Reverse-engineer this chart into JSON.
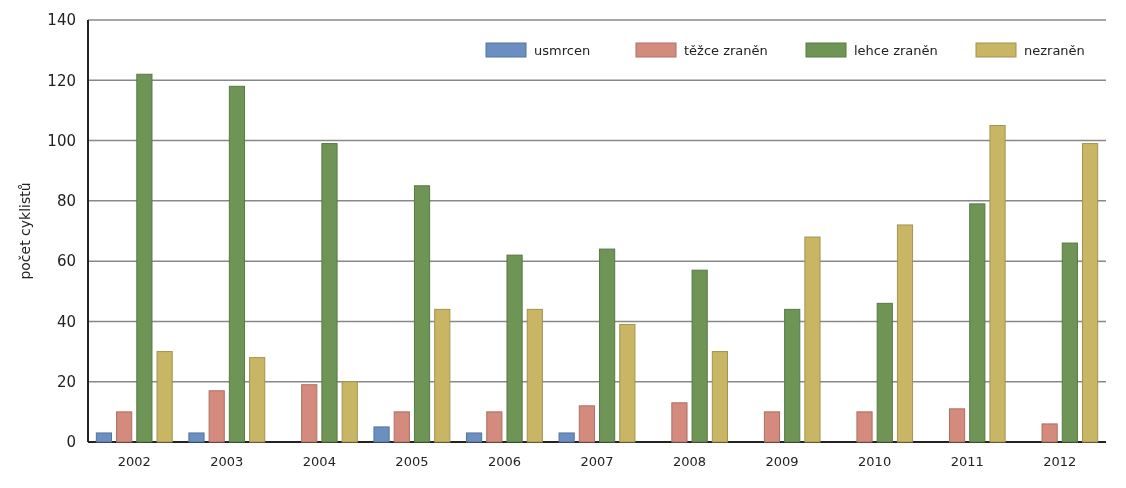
{
  "chart_data": {
    "type": "bar",
    "ylabel": "počet cyklistů",
    "categories": [
      "2002",
      "2003",
      "2004",
      "2005",
      "2006",
      "2007",
      "2008",
      "2009",
      "2010",
      "2011",
      "2012"
    ],
    "series": [
      {
        "name": "usmrcen",
        "color": "#6a8fc0",
        "values": [
          3,
          3,
          0,
          5,
          3,
          3,
          0,
          0,
          0,
          0,
          0
        ]
      },
      {
        "name": "těžce zraněn",
        "color": "#d48a7c",
        "values": [
          10,
          17,
          19,
          10,
          10,
          12,
          13,
          10,
          10,
          11,
          6
        ]
      },
      {
        "name": "lehce zraněn",
        "color": "#6e9556",
        "values": [
          122,
          118,
          99,
          85,
          62,
          64,
          57,
          44,
          46,
          79,
          66
        ]
      },
      {
        "name": "nezraněn",
        "color": "#c9b664",
        "values": [
          30,
          28,
          20,
          44,
          44,
          39,
          30,
          68,
          72,
          105,
          99
        ]
      }
    ],
    "ylim": [
      0,
      140
    ],
    "yticks": [
      0,
      20,
      40,
      60,
      80,
      100,
      120,
      140
    ],
    "grid": "y",
    "legend": "top right"
  }
}
